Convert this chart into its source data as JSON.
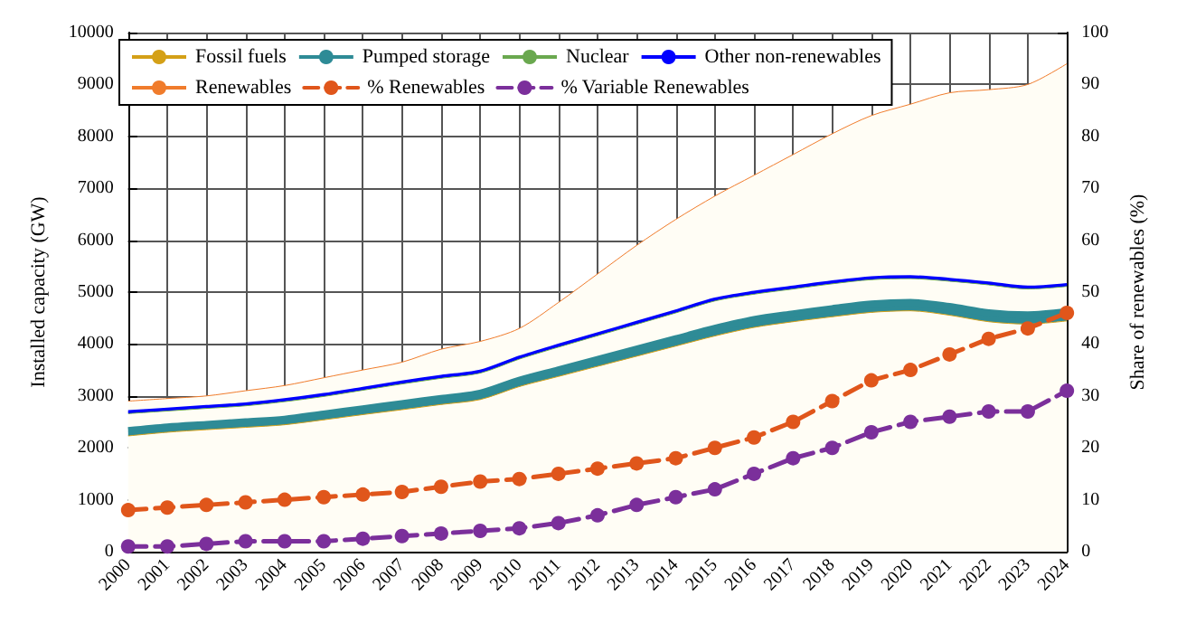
{
  "chart_data": {
    "type": "area",
    "stacked": true,
    "xlabel": null,
    "ylabel": "Installed capacity (GW)",
    "y2label": "Share of renewables (%)",
    "categories": [
      "2000",
      "2001",
      "2002",
      "2003",
      "2004",
      "2005",
      "2006",
      "2007",
      "2008",
      "2009",
      "2010",
      "2011",
      "2012",
      "2013",
      "2014",
      "2015",
      "2016",
      "2017",
      "2018",
      "2019",
      "2020",
      "2021",
      "2022",
      "2023",
      "2024"
    ],
    "series": [
      {
        "name": "Fossil fuels",
        "color": "#d4a017",
        "values": [
          2230,
          2300,
          2350,
          2395,
          2445,
          2540,
          2640,
          2735,
          2835,
          2930,
          3180,
          3375,
          3570,
          3765,
          3960,
          4155,
          4320,
          4430,
          4525,
          4610,
          4640,
          4555,
          4430,
          4385,
          4445
        ]
      },
      {
        "name": "Pumped storage",
        "color": "#2e8b96",
        "values": [
          100,
          100,
          100,
          105,
          105,
          110,
          110,
          115,
          115,
          120,
          120,
          125,
          130,
          135,
          140,
          145,
          150,
          150,
          155,
          160,
          160,
          165,
          170,
          175,
          175
        ]
      },
      {
        "name": "Nuclear",
        "color": "#6aa84f",
        "values": [
          330,
          310,
          310,
          310,
          340,
          340,
          360,
          380,
          390,
          390,
          410,
          440,
          460,
          480,
          500,
          530,
          490,
          480,
          480,
          470,
          460,
          490,
          540,
          500,
          490
        ]
      },
      {
        "name": "Other non-renewables",
        "color": "#0000ff",
        "values": [
          40,
          40,
          40,
          40,
          40,
          40,
          40,
          40,
          40,
          40,
          40,
          40,
          40,
          40,
          40,
          40,
          40,
          40,
          40,
          40,
          40,
          40,
          40,
          40,
          40
        ]
      },
      {
        "name": "Renewables",
        "color": "#f07c2c",
        "values": [
          200,
          200,
          200,
          250,
          270,
          320,
          350,
          380,
          520,
          570,
          550,
          820,
          1150,
          1480,
          1760,
          1980,
          2250,
          2550,
          2850,
          3120,
          3320,
          3590,
          3720,
          3900,
          4250
        ]
      },
      {
        "name": "% Renewables",
        "type": "line",
        "axis": "y2",
        "color": "#e0561b",
        "line_style": "dashed",
        "marker": "circle",
        "values": [
          8,
          8.5,
          9,
          9.5,
          10,
          10.5,
          11,
          11.5,
          12.5,
          13.5,
          14,
          15,
          16,
          17,
          18,
          20,
          22,
          25,
          29,
          33,
          35,
          38,
          41,
          43,
          46
        ]
      },
      {
        "name": "% Variable Renewables",
        "type": "line",
        "axis": "y2",
        "color": "#7b2f9b",
        "line_style": "dashed",
        "marker": "circle",
        "values": [
          1,
          1,
          1.5,
          2,
          2,
          2,
          2.5,
          3,
          3.5,
          4,
          4.5,
          5.5,
          7,
          9,
          10.5,
          12,
          15,
          18,
          20,
          23,
          25,
          26,
          27,
          27,
          31
        ]
      }
    ],
    "ylim": [
      0,
      10000
    ],
    "yticks": [
      0,
      1000,
      2000,
      3000,
      4000,
      5000,
      6000,
      7000,
      8000,
      9000,
      10000
    ],
    "y2lim": [
      0,
      100
    ],
    "y2ticks": [
      0,
      10,
      20,
      30,
      40,
      50,
      60,
      70,
      80,
      90,
      100
    ],
    "grid": true,
    "legend": "top left"
  }
}
